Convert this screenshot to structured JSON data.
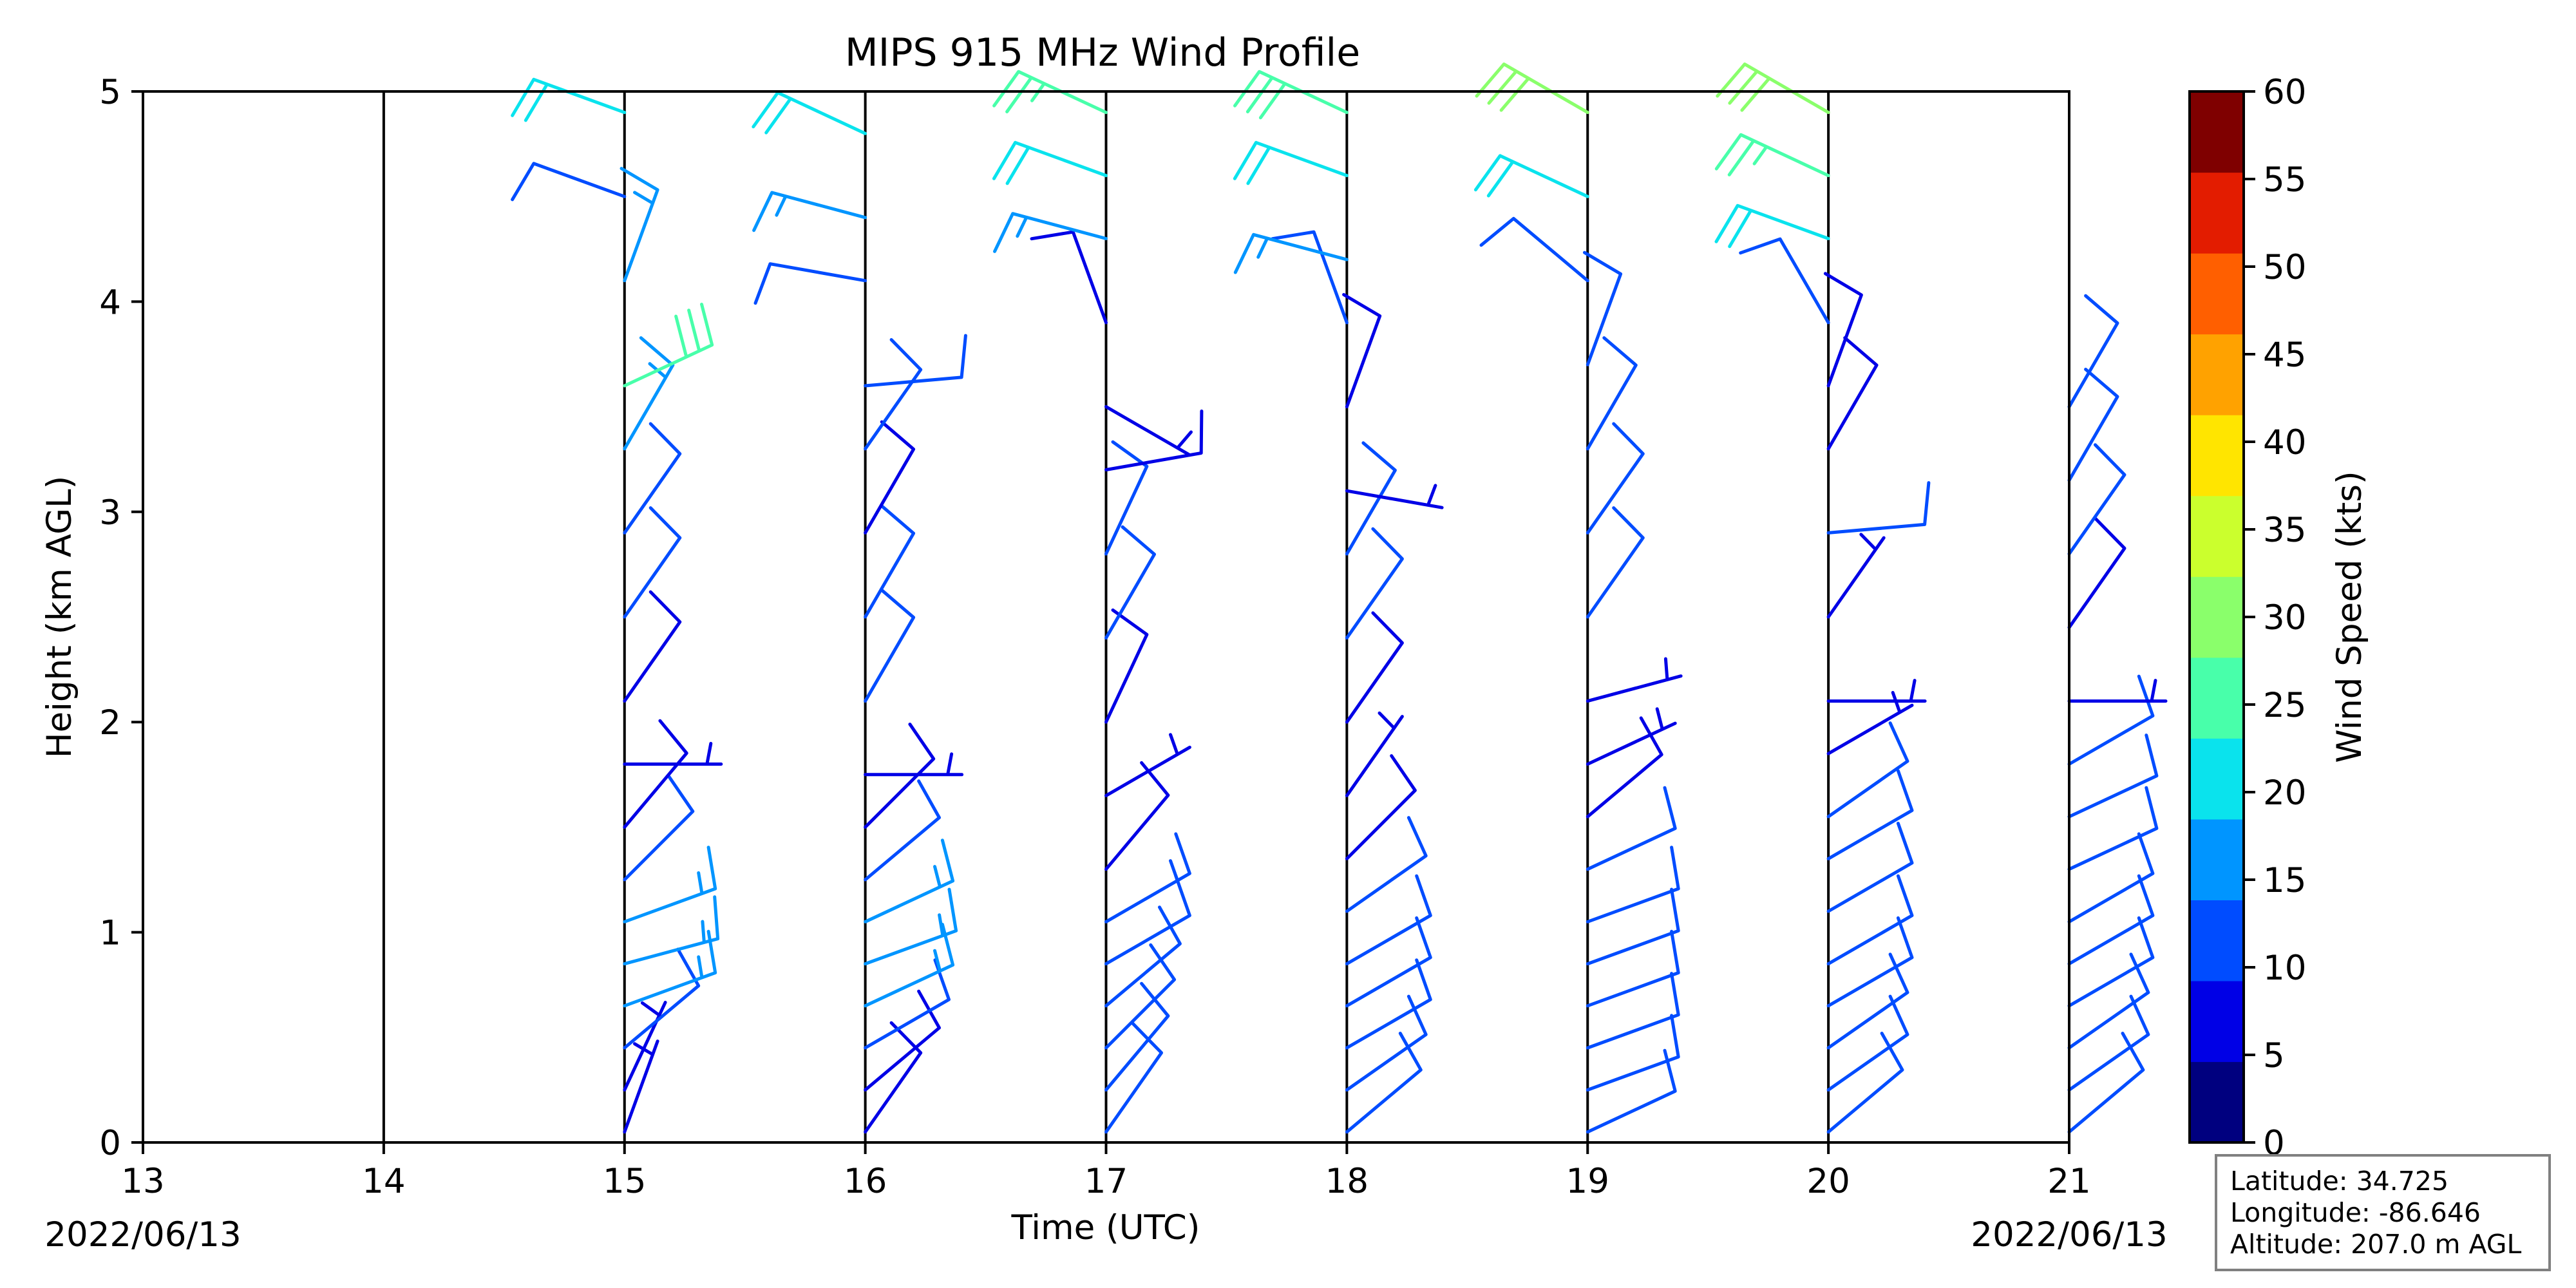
{
  "chart_data": {
    "type": "wind-barbs",
    "title": "MIPS 915 MHz Wind Profile",
    "xlabel": "Time (UTC)",
    "ylabel": "Height (km AGL)",
    "xlim": [
      13,
      21
    ],
    "ylim": [
      0,
      5
    ],
    "x_ticks": [
      "13",
      "14",
      "15",
      "16",
      "17",
      "18",
      "19",
      "20",
      "21"
    ],
    "y_ticks": [
      "0",
      "1",
      "2",
      "3",
      "4",
      "5"
    ],
    "date_start": "2022/06/13",
    "date_end": "2022/06/13",
    "profile_times": [
      14,
      15,
      16,
      17,
      18,
      19,
      20,
      21
    ],
    "colorbar": {
      "label": "Wind Speed (kts)",
      "ticks": [
        "0",
        "5",
        "10",
        "15",
        "20",
        "25",
        "30",
        "35",
        "40",
        "45",
        "50",
        "55",
        "60"
      ],
      "colors": [
        "#00007f",
        "#0000e6",
        "#004cff",
        "#0095ff",
        "#0ae3ed",
        "#48ffaa",
        "#8aff6b",
        "#cbff2d",
        "#ffe500",
        "#ffa200",
        "#ff5f00",
        "#e31c00",
        "#7f0000"
      ]
    },
    "profiles": [
      {
        "time": 15,
        "levels": [
          {
            "h": 0.05,
            "speed": 5,
            "dir": 200
          },
          {
            "h": 0.25,
            "speed": 6,
            "dir": 205
          },
          {
            "h": 0.45,
            "speed": 10,
            "dir": 230
          },
          {
            "h": 0.65,
            "speed": 15,
            "dir": 250
          },
          {
            "h": 0.85,
            "speed": 16,
            "dir": 255
          },
          {
            "h": 1.05,
            "speed": 15,
            "dir": 250
          },
          {
            "h": 1.25,
            "speed": 10,
            "dir": 225
          },
          {
            "h": 1.5,
            "speed": 8,
            "dir": 220
          },
          {
            "h": 1.8,
            "speed": 5,
            "dir": 270
          },
          {
            "h": 2.1,
            "speed": 8,
            "dir": 215
          },
          {
            "h": 2.5,
            "speed": 10,
            "dir": 215
          },
          {
            "h": 2.9,
            "speed": 11,
            "dir": 215
          },
          {
            "h": 3.3,
            "speed": 15,
            "dir": 210
          },
          {
            "h": 3.6,
            "speed": 28,
            "dir": 245
          },
          {
            "h": 4.1,
            "speed": 16,
            "dir": 200
          },
          {
            "h": 4.5,
            "speed": 12,
            "dir": 110
          },
          {
            "h": 4.9,
            "speed": 22,
            "dir": 110
          }
        ]
      },
      {
        "time": 16,
        "levels": [
          {
            "h": 0.05,
            "speed": 8,
            "dir": 215
          },
          {
            "h": 0.25,
            "speed": 9,
            "dir": 230
          },
          {
            "h": 0.45,
            "speed": 10,
            "dir": 240
          },
          {
            "h": 0.65,
            "speed": 16,
            "dir": 245
          },
          {
            "h": 0.85,
            "speed": 17,
            "dir": 250
          },
          {
            "h": 1.05,
            "speed": 15,
            "dir": 245
          },
          {
            "h": 1.25,
            "speed": 10,
            "dir": 230
          },
          {
            "h": 1.5,
            "speed": 8,
            "dir": 225
          },
          {
            "h": 1.75,
            "speed": 5,
            "dir": 270
          },
          {
            "h": 2.1,
            "speed": 10,
            "dir": 210
          },
          {
            "h": 2.5,
            "speed": 10,
            "dir": 210
          },
          {
            "h": 2.9,
            "speed": 9,
            "dir": 210
          },
          {
            "h": 3.3,
            "speed": 10,
            "dir": 215
          },
          {
            "h": 3.6,
            "speed": 12,
            "dir": 265
          },
          {
            "h": 4.1,
            "speed": 12,
            "dir": 100
          },
          {
            "h": 4.4,
            "speed": 15,
            "dir": 105
          },
          {
            "h": 4.8,
            "speed": 22,
            "dir": 115
          }
        ]
      },
      {
        "time": 17,
        "levels": [
          {
            "h": 0.05,
            "speed": 10,
            "dir": 215
          },
          {
            "h": 0.25,
            "speed": 10,
            "dir": 220
          },
          {
            "h": 0.45,
            "speed": 10,
            "dir": 225
          },
          {
            "h": 0.65,
            "speed": 11,
            "dir": 230
          },
          {
            "h": 0.85,
            "speed": 12,
            "dir": 240
          },
          {
            "h": 1.05,
            "speed": 13,
            "dir": 240
          },
          {
            "h": 1.3,
            "speed": 8,
            "dir": 220
          },
          {
            "h": 1.65,
            "speed": 5,
            "dir": 240
          },
          {
            "h": 2.0,
            "speed": 8,
            "dir": 205
          },
          {
            "h": 2.4,
            "speed": 10,
            "dir": 210
          },
          {
            "h": 2.8,
            "speed": 10,
            "dir": 205
          },
          {
            "h": 3.2,
            "speed": 8,
            "dir": 260
          },
          {
            "h": 3.5,
            "speed": 5,
            "dir": 300
          },
          {
            "h": 3.9,
            "speed": 8,
            "dir": 160
          },
          {
            "h": 4.3,
            "speed": 15,
            "dir": 105
          },
          {
            "h": 4.6,
            "speed": 20,
            "dir": 110
          },
          {
            "h": 4.9,
            "speed": 25,
            "dir": 115
          }
        ]
      },
      {
        "time": 18,
        "levels": [
          {
            "h": 0.05,
            "speed": 10,
            "dir": 230
          },
          {
            "h": 0.25,
            "speed": 11,
            "dir": 235
          },
          {
            "h": 0.45,
            "speed": 11,
            "dir": 240
          },
          {
            "h": 0.65,
            "speed": 11,
            "dir": 240
          },
          {
            "h": 0.85,
            "speed": 11,
            "dir": 240
          },
          {
            "h": 1.1,
            "speed": 10,
            "dir": 235
          },
          {
            "h": 1.35,
            "speed": 8,
            "dir": 225
          },
          {
            "h": 1.65,
            "speed": 6,
            "dir": 215
          },
          {
            "h": 2.0,
            "speed": 8,
            "dir": 215
          },
          {
            "h": 2.4,
            "speed": 10,
            "dir": 215
          },
          {
            "h": 2.8,
            "speed": 10,
            "dir": 210
          },
          {
            "h": 3.1,
            "speed": 7,
            "dir": 280
          },
          {
            "h": 3.5,
            "speed": 9,
            "dir": 200
          },
          {
            "h": 3.9,
            "speed": 10,
            "dir": 160
          },
          {
            "h": 4.2,
            "speed": 15,
            "dir": 105
          },
          {
            "h": 4.6,
            "speed": 20,
            "dir": 110
          },
          {
            "h": 4.9,
            "speed": 28,
            "dir": 115
          }
        ]
      },
      {
        "time": 19,
        "levels": [
          {
            "h": 0.05,
            "speed": 11,
            "dir": 245
          },
          {
            "h": 0.25,
            "speed": 11,
            "dir": 250
          },
          {
            "h": 0.45,
            "speed": 12,
            "dir": 250
          },
          {
            "h": 0.65,
            "speed": 12,
            "dir": 250
          },
          {
            "h": 0.85,
            "speed": 12,
            "dir": 250
          },
          {
            "h": 1.05,
            "speed": 12,
            "dir": 250
          },
          {
            "h": 1.3,
            "speed": 11,
            "dir": 245
          },
          {
            "h": 1.55,
            "speed": 8,
            "dir": 230
          },
          {
            "h": 1.8,
            "speed": 5,
            "dir": 245
          },
          {
            "h": 2.1,
            "speed": 7,
            "dir": 255
          },
          {
            "h": 2.5,
            "speed": 10,
            "dir": 215
          },
          {
            "h": 2.9,
            "speed": 10,
            "dir": 215
          },
          {
            "h": 3.3,
            "speed": 12,
            "dir": 210
          },
          {
            "h": 3.7,
            "speed": 10,
            "dir": 200
          },
          {
            "h": 4.1,
            "speed": 12,
            "dir": 130
          },
          {
            "h": 4.5,
            "speed": 20,
            "dir": 115
          },
          {
            "h": 4.9,
            "speed": 30,
            "dir": 120
          }
        ]
      },
      {
        "time": 20,
        "levels": [
          {
            "h": 0.05,
            "speed": 10,
            "dir": 230
          },
          {
            "h": 0.25,
            "speed": 10,
            "dir": 235
          },
          {
            "h": 0.45,
            "speed": 10,
            "dir": 235
          },
          {
            "h": 0.65,
            "speed": 10,
            "dir": 240
          },
          {
            "h": 0.85,
            "speed": 10,
            "dir": 240
          },
          {
            "h": 1.1,
            "speed": 11,
            "dir": 240
          },
          {
            "h": 1.35,
            "speed": 11,
            "dir": 240
          },
          {
            "h": 1.55,
            "speed": 10,
            "dir": 235
          },
          {
            "h": 1.85,
            "speed": 6,
            "dir": 240
          },
          {
            "h": 2.1,
            "speed": 5,
            "dir": 270
          },
          {
            "h": 2.5,
            "speed": 7,
            "dir": 215
          },
          {
            "h": 2.9,
            "speed": 10,
            "dir": 265
          },
          {
            "h": 3.3,
            "speed": 8,
            "dir": 210
          },
          {
            "h": 3.6,
            "speed": 8,
            "dir": 200
          },
          {
            "h": 3.9,
            "speed": 12,
            "dir": 150
          },
          {
            "h": 4.3,
            "speed": 20,
            "dir": 110
          },
          {
            "h": 4.6,
            "speed": 25,
            "dir": 115
          },
          {
            "h": 4.9,
            "speed": 30,
            "dir": 120
          }
        ]
      },
      {
        "time": 21,
        "levels": [
          {
            "h": 0.05,
            "speed": 10,
            "dir": 230
          },
          {
            "h": 0.25,
            "speed": 10,
            "dir": 235
          },
          {
            "h": 0.45,
            "speed": 10,
            "dir": 235
          },
          {
            "h": 0.65,
            "speed": 11,
            "dir": 240
          },
          {
            "h": 0.85,
            "speed": 11,
            "dir": 240
          },
          {
            "h": 1.05,
            "speed": 11,
            "dir": 240
          },
          {
            "h": 1.3,
            "speed": 11,
            "dir": 245
          },
          {
            "h": 1.55,
            "speed": 11,
            "dir": 245
          },
          {
            "h": 1.8,
            "speed": 10,
            "dir": 240
          },
          {
            "h": 2.1,
            "speed": 5,
            "dir": 270
          },
          {
            "h": 2.45,
            "speed": 8,
            "dir": 215
          },
          {
            "h": 2.8,
            "speed": 10,
            "dir": 215
          },
          {
            "h": 3.15,
            "speed": 10,
            "dir": 210
          },
          {
            "h": 3.5,
            "speed": 10,
            "dir": 210
          }
        ]
      }
    ]
  },
  "station": {
    "latitude": "Latitude: 34.725",
    "longitude": "Longitude: -86.646",
    "altitude": "Altitude: 207.0 m AGL"
  }
}
